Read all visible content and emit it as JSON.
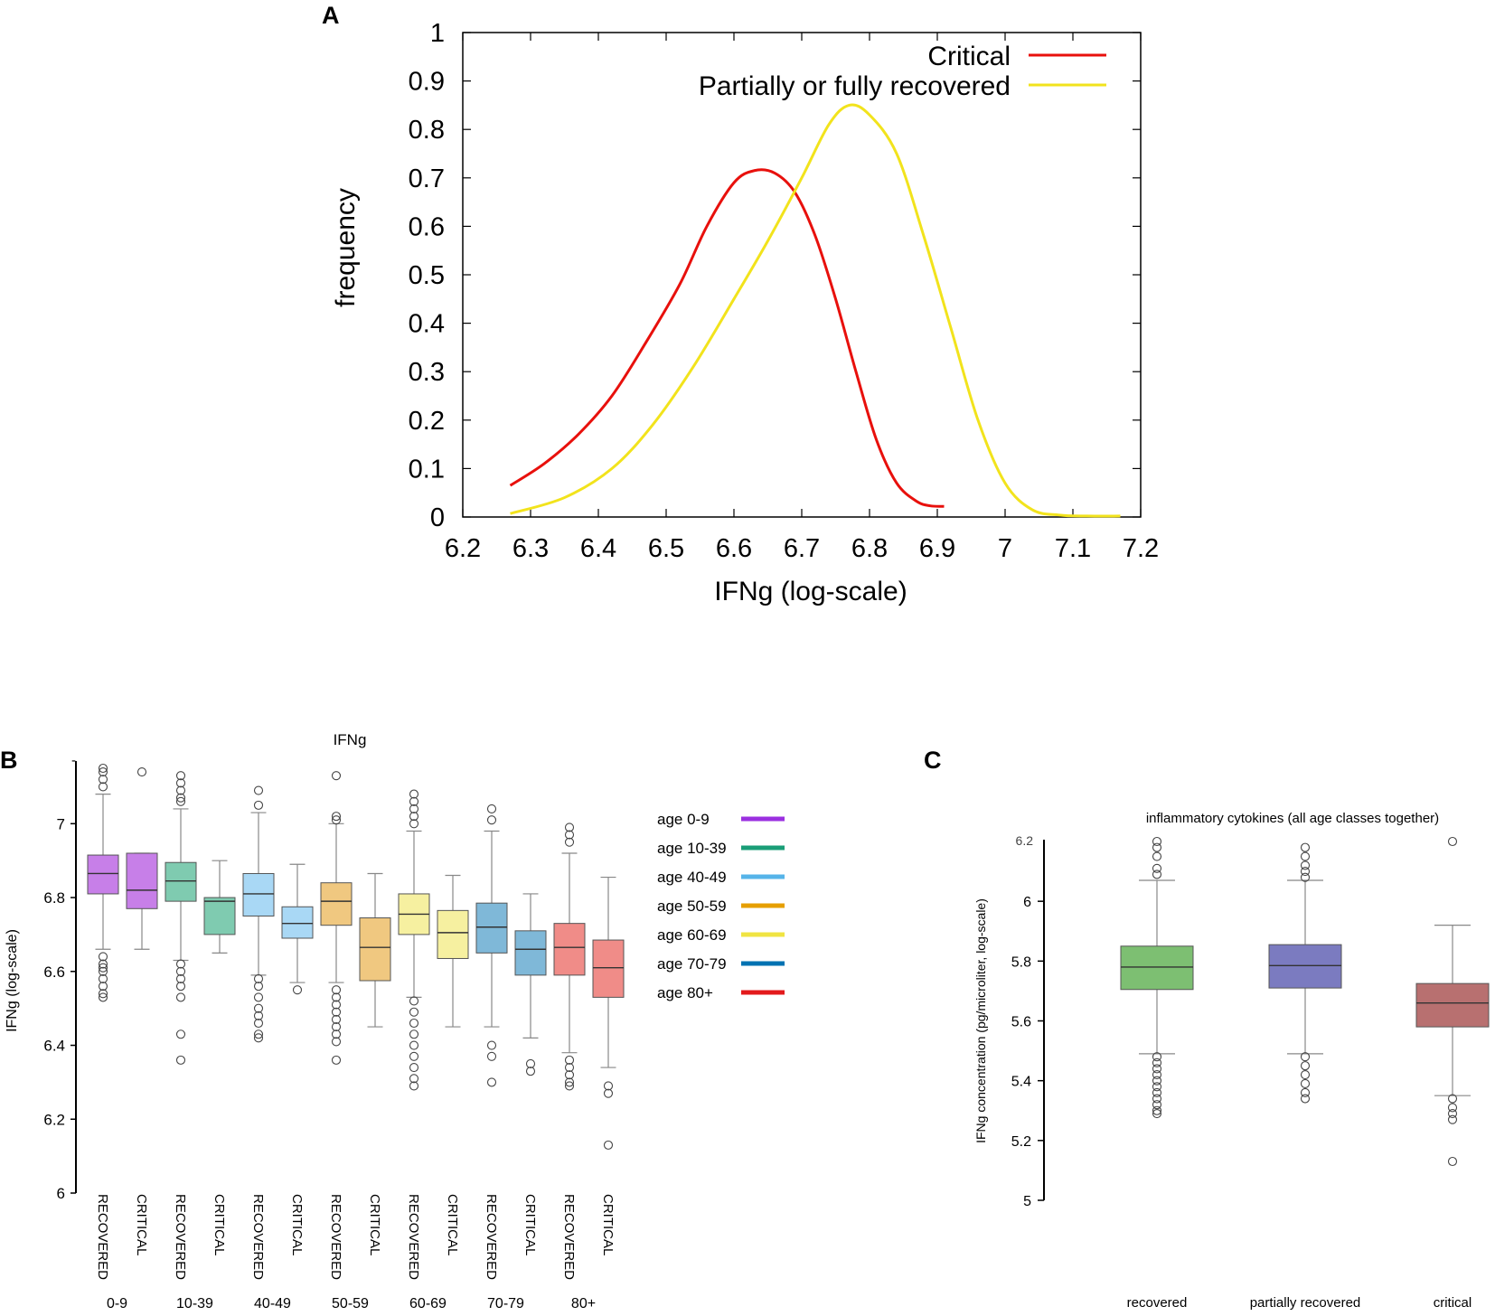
{
  "panels": {
    "a_letter": "A",
    "b_letter": "B",
    "c_letter": "C"
  },
  "colors": {
    "critical": "#e8100c",
    "recovered": "#f2e31c",
    "age_0_9": "#9b30e0",
    "age_10_39": "#1a9e77",
    "age_40_49": "#56b4e9",
    "age_50_59": "#e69f00",
    "age_60_69": "#f0e442",
    "age_70_79": "#0072b2",
    "age_80": "#e31a1c"
  },
  "chart_data": [
    {
      "id": "A",
      "type": "line",
      "title": "",
      "xlabel": "IFNg (log-scale)",
      "ylabel": "frequency",
      "xlim": [
        6.2,
        7.2
      ],
      "ylim": [
        0,
        1
      ],
      "x_ticks": [
        "6.2",
        "6.3",
        "6.4",
        "6.5",
        "6.6",
        "6.7",
        "6.8",
        "6.9",
        "7",
        "7.1",
        "7.2"
      ],
      "y_ticks": [
        "0",
        "0.1",
        "0.2",
        "0.3",
        "0.4",
        "0.5",
        "0.6",
        "0.7",
        "0.8",
        "0.9",
        "1"
      ],
      "legend_position": "top-right",
      "series": [
        {
          "name": "Critical",
          "color": "#e8100c",
          "x": [
            6.27,
            6.32,
            6.37,
            6.42,
            6.47,
            6.52,
            6.56,
            6.6,
            6.63,
            6.66,
            6.69,
            6.72,
            6.75,
            6.78,
            6.81,
            6.84,
            6.87,
            6.89,
            6.91
          ],
          "y": [
            0.065,
            0.11,
            0.17,
            0.25,
            0.36,
            0.48,
            0.6,
            0.69,
            0.715,
            0.71,
            0.67,
            0.58,
            0.45,
            0.3,
            0.16,
            0.07,
            0.032,
            0.023,
            0.022
          ]
        },
        {
          "name": "Partially or fully recovered",
          "color": "#f2e31c",
          "x": [
            6.27,
            6.35,
            6.42,
            6.48,
            6.54,
            6.6,
            6.65,
            6.7,
            6.74,
            6.77,
            6.8,
            6.84,
            6.88,
            6.92,
            6.96,
            7.0,
            7.04,
            7.08,
            7.12,
            7.17
          ],
          "y": [
            0.007,
            0.04,
            0.1,
            0.19,
            0.31,
            0.45,
            0.57,
            0.7,
            0.81,
            0.85,
            0.83,
            0.75,
            0.58,
            0.39,
            0.2,
            0.07,
            0.015,
            0.004,
            0.002,
            0.002
          ]
        }
      ]
    },
    {
      "id": "B",
      "type": "box",
      "title": "IFNg",
      "ylabel": "IFNg (log-scale)",
      "ylim": [
        6,
        7.15
      ],
      "y_ticks": [
        "6",
        "6.2",
        "6.4",
        "6.6",
        "6.8",
        "7"
      ],
      "top_tick_label": "-",
      "category_labels": [
        "RECOVERED",
        "CRITICAL"
      ],
      "group_labels": [
        "0-9",
        "10-39",
        "40-49",
        "50-59",
        "60-69",
        "70-79",
        "80+"
      ],
      "legend": [
        {
          "label": "age 0-9",
          "color": "#9b30e0"
        },
        {
          "label": "age 10-39",
          "color": "#1a9e77"
        },
        {
          "label": "age 40-49",
          "color": "#56b4e9"
        },
        {
          "label": "age 50-59",
          "color": "#e69f00"
        },
        {
          "label": "age 60-69",
          "color": "#f0e442"
        },
        {
          "label": "age 70-79",
          "color": "#0072b2"
        },
        {
          "label": "age 80+",
          "color": "#e31a1c"
        }
      ],
      "boxes": [
        {
          "group": "0-9",
          "category": "RECOVERED",
          "color": "#c77fe8",
          "whisker_low": 6.66,
          "q1": 6.81,
          "median": 6.865,
          "q3": 6.915,
          "whisker_high": 7.08,
          "outliers": [
            7.12,
            7.1,
            7.15,
            7.14,
            6.64,
            6.62,
            6.61,
            6.6,
            6.58,
            6.56,
            6.54,
            6.53
          ]
        },
        {
          "group": "0-9",
          "category": "CRITICAL",
          "color": "#c77fe8",
          "whisker_low": 6.66,
          "q1": 6.77,
          "median": 6.82,
          "q3": 6.92,
          "whisker_high": 6.92,
          "outliers": [
            7.14
          ]
        },
        {
          "group": "10-39",
          "category": "RECOVERED",
          "color": "#7fcbb0",
          "whisker_low": 6.63,
          "q1": 6.79,
          "median": 6.845,
          "q3": 6.895,
          "whisker_high": 7.04,
          "outliers": [
            7.13,
            7.11,
            7.09,
            7.07,
            7.06,
            6.62,
            6.6,
            6.58,
            6.56,
            6.53,
            6.43,
            6.36
          ]
        },
        {
          "group": "10-39",
          "category": "CRITICAL",
          "color": "#7fcbb0",
          "whisker_low": 6.65,
          "q1": 6.7,
          "median": 6.79,
          "q3": 6.8,
          "whisker_high": 6.9,
          "outliers": []
        },
        {
          "group": "40-49",
          "category": "RECOVERED",
          "color": "#a9d8f5",
          "whisker_low": 6.59,
          "q1": 6.75,
          "median": 6.81,
          "q3": 6.865,
          "whisker_high": 7.03,
          "outliers": [
            7.09,
            7.05,
            6.58,
            6.56,
            6.53,
            6.5,
            6.48,
            6.46,
            6.43,
            6.42
          ]
        },
        {
          "group": "40-49",
          "category": "CRITICAL",
          "color": "#a9d8f5",
          "whisker_low": 6.57,
          "q1": 6.69,
          "median": 6.73,
          "q3": 6.775,
          "whisker_high": 6.89,
          "outliers": [
            6.55
          ]
        },
        {
          "group": "50-59",
          "category": "RECOVERED",
          "color": "#f0c880",
          "whisker_low": 6.57,
          "q1": 6.725,
          "median": 6.79,
          "q3": 6.84,
          "whisker_high": 7.0,
          "outliers": [
            7.13,
            7.02,
            7.01,
            6.55,
            6.53,
            6.51,
            6.49,
            6.47,
            6.45,
            6.43,
            6.41,
            6.36
          ]
        },
        {
          "group": "50-59",
          "category": "CRITICAL",
          "color": "#f0c880",
          "whisker_low": 6.45,
          "q1": 6.575,
          "median": 6.665,
          "q3": 6.745,
          "whisker_high": 6.865,
          "outliers": []
        },
        {
          "group": "60-69",
          "category": "RECOVERED",
          "color": "#f6f0a0",
          "whisker_low": 6.53,
          "q1": 6.7,
          "median": 6.755,
          "q3": 6.81,
          "whisker_high": 6.98,
          "outliers": [
            7.08,
            7.06,
            7.04,
            7.02,
            7.0,
            6.52,
            6.49,
            6.46,
            6.43,
            6.4,
            6.37,
            6.34,
            6.31,
            6.29
          ]
        },
        {
          "group": "60-69",
          "category": "CRITICAL",
          "color": "#f6f0a0",
          "whisker_low": 6.45,
          "q1": 6.635,
          "median": 6.705,
          "q3": 6.765,
          "whisker_high": 6.86,
          "outliers": []
        },
        {
          "group": "70-79",
          "category": "RECOVERED",
          "color": "#7fb8d8",
          "whisker_low": 6.45,
          "q1": 6.65,
          "median": 6.72,
          "q3": 6.785,
          "whisker_high": 6.98,
          "outliers": [
            7.04,
            7.01,
            6.4,
            6.37,
            6.3
          ]
        },
        {
          "group": "70-79",
          "category": "CRITICAL",
          "color": "#7fb8d8",
          "whisker_low": 6.42,
          "q1": 6.59,
          "median": 6.66,
          "q3": 6.71,
          "whisker_high": 6.81,
          "outliers": [
            6.35,
            6.33
          ]
        },
        {
          "group": "80+",
          "category": "RECOVERED",
          "color": "#f08c88",
          "whisker_low": 6.38,
          "q1": 6.59,
          "median": 6.665,
          "q3": 6.73,
          "whisker_high": 6.92,
          "outliers": [
            6.99,
            6.97,
            6.95,
            6.36,
            6.34,
            6.32,
            6.3,
            6.29
          ]
        },
        {
          "group": "80+",
          "category": "CRITICAL",
          "color": "#f08c88",
          "whisker_low": 6.34,
          "q1": 6.53,
          "median": 6.61,
          "q3": 6.685,
          "whisker_high": 6.855,
          "outliers": [
            6.29,
            6.27,
            6.13
          ]
        }
      ]
    },
    {
      "id": "C",
      "type": "box",
      "title": "inflammatory cytokines (all age classes together)",
      "ylabel": "IFNg concentration (pg/microliter, log-scale)",
      "ylim": [
        5,
        6.2
      ],
      "y_ticks": [
        "5",
        "5.2",
        "5.4",
        "5.6",
        "5.8",
        "6"
      ],
      "top_tick_label": "6.2",
      "categories": [
        "recovered",
        "partially recovered",
        "critical"
      ],
      "boxes": [
        {
          "category": "recovered",
          "color": "#7dbf72",
          "whisker_low": 5.49,
          "q1": 5.705,
          "median": 5.78,
          "q3": 5.85,
          "whisker_high": 6.07,
          "outliers": [
            6.2,
            6.18,
            6.15,
            6.11,
            6.09,
            5.48,
            5.46,
            5.44,
            5.42,
            5.4,
            5.38,
            5.36,
            5.34,
            5.32,
            5.3,
            5.29
          ]
        },
        {
          "category": "partially recovered",
          "color": "#7b7bc0",
          "whisker_low": 5.49,
          "q1": 5.71,
          "median": 5.785,
          "q3": 5.855,
          "whisker_high": 6.07,
          "outliers": [
            6.18,
            6.15,
            6.12,
            6.1,
            6.08,
            5.48,
            5.45,
            5.42,
            5.39,
            5.36,
            5.34
          ]
        },
        {
          "category": "critical",
          "color": "#b87070",
          "whisker_low": 5.35,
          "q1": 5.58,
          "median": 5.66,
          "q3": 5.725,
          "whisker_high": 5.92,
          "outliers": [
            6.2,
            5.34,
            5.31,
            5.29,
            5.27,
            5.13
          ]
        }
      ]
    }
  ]
}
